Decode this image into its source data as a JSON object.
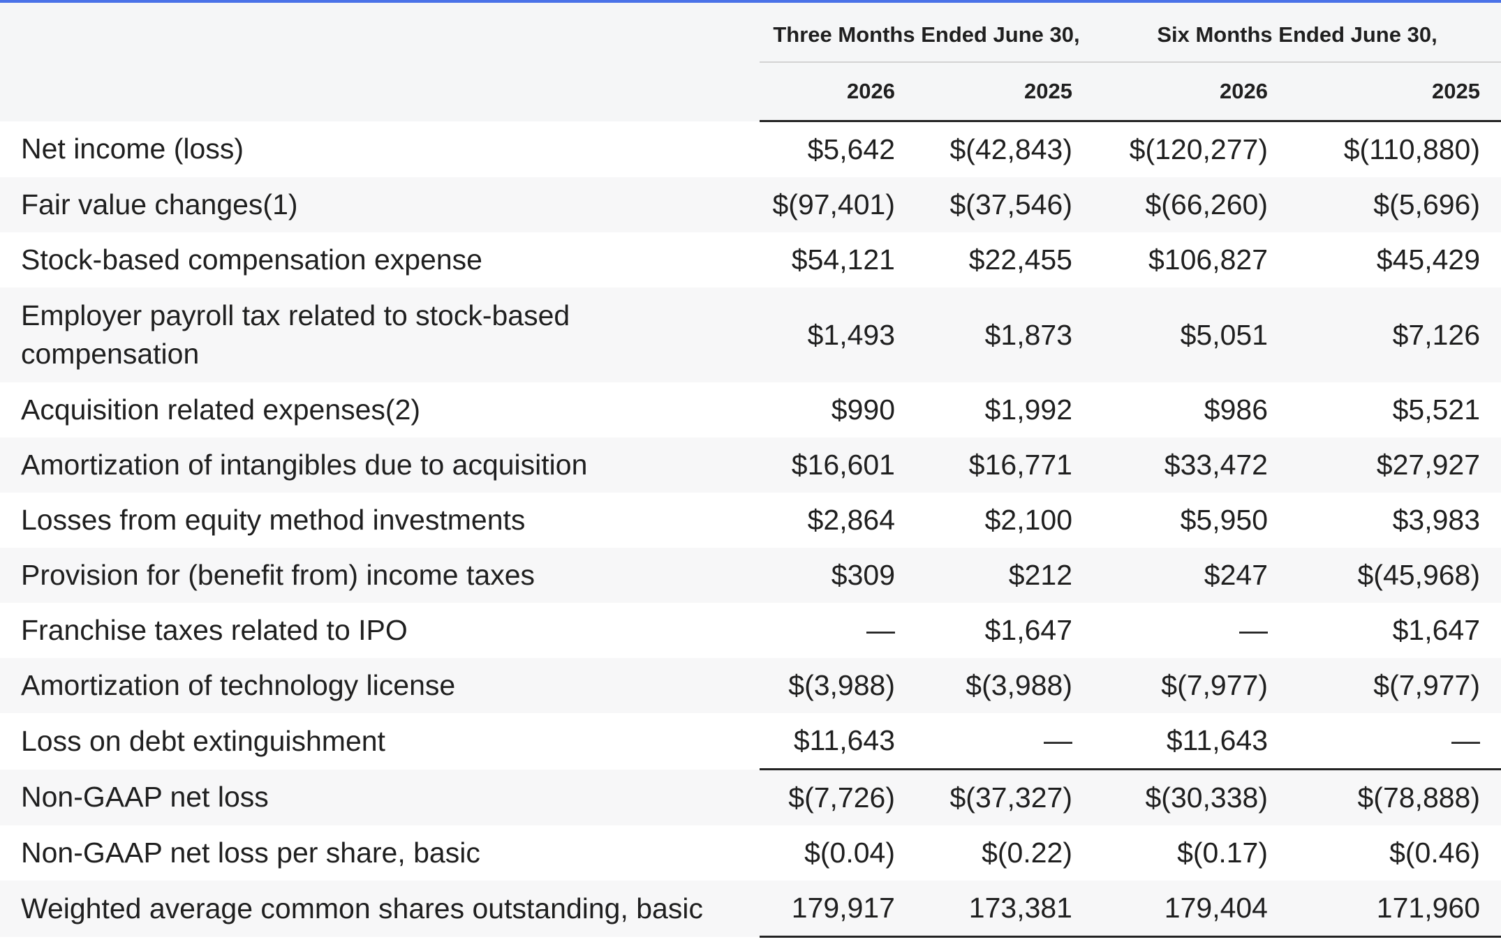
{
  "header": {
    "group_three_months": "Three Months Ended June 30,",
    "group_six_months": "Six Months Ended June 30,",
    "years": [
      "2026",
      "2025",
      "2026",
      "2025"
    ]
  },
  "rows": [
    {
      "label": "Net income (loss)",
      "values": [
        "$5,642",
        "$(42,843)",
        "$(120,277)",
        "$(110,880)"
      ]
    },
    {
      "label": "Fair value changes(1)",
      "values": [
        "$(97,401)",
        "$(37,546)",
        "$(66,260)",
        "$(5,696)"
      ]
    },
    {
      "label": "Stock-based compensation expense",
      "values": [
        "$54,121",
        "$22,455",
        "$106,827",
        "$45,429"
      ]
    },
    {
      "label": "Employer payroll tax related to stock-based compensation",
      "values": [
        "$1,493",
        "$1,873",
        "$5,051",
        "$7,126"
      ]
    },
    {
      "label": "Acquisition related expenses(2)",
      "values": [
        "$990",
        "$1,992",
        "$986",
        "$5,521"
      ]
    },
    {
      "label": "Amortization of intangibles due to acquisition",
      "values": [
        "$16,601",
        "$16,771",
        "$33,472",
        "$27,927"
      ]
    },
    {
      "label": "Losses from equity method investments",
      "values": [
        "$2,864",
        "$2,100",
        "$5,950",
        "$3,983"
      ]
    },
    {
      "label": "Provision for (benefit from) income taxes",
      "values": [
        "$309",
        "$212",
        "$247",
        "$(45,968)"
      ]
    },
    {
      "label": "Franchise taxes related to IPO",
      "values": [
        "—",
        "$1,647",
        "—",
        "$1,647"
      ]
    },
    {
      "label": "Amortization of technology license",
      "values": [
        "$(3,988)",
        "$(3,988)",
        "$(7,977)",
        "$(7,977)"
      ]
    },
    {
      "label": "Loss on debt extinguishment",
      "values": [
        "$11,643",
        "—",
        "$11,643",
        "—"
      ]
    },
    {
      "label": "Non-GAAP net loss",
      "values": [
        "$(7,726)",
        "$(37,327)",
        "$(30,338)",
        "$(78,888)"
      ]
    },
    {
      "label": "Non-GAAP net loss per share, basic",
      "values": [
        "$(0.04)",
        "$(0.22)",
        "$(0.17)",
        "$(0.46)"
      ]
    },
    {
      "label": "Weighted average common shares outstanding, basic",
      "values": [
        "179,917",
        "173,381",
        "179,404",
        "171,960"
      ]
    }
  ]
}
